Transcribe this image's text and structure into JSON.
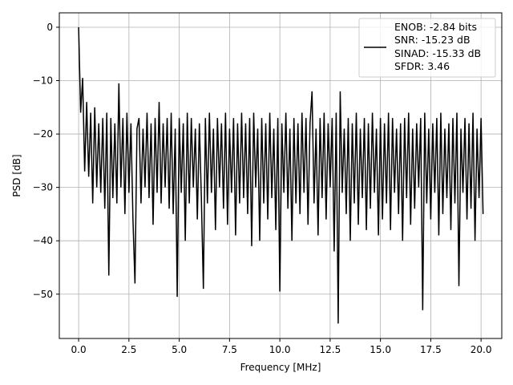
{
  "chart_data": {
    "type": "line",
    "title": "",
    "xlabel": "Frequency [MHz]",
    "ylabel": "PSD [dB]",
    "xlim": [
      -0.96,
      21.03
    ],
    "ylim": [
      -58.3,
      2.7
    ],
    "xticks": [
      0.0,
      2.5,
      5.0,
      7.5,
      10.0,
      12.5,
      15.0,
      17.5,
      20.0
    ],
    "xtick_labels": [
      "0.0",
      "2.5",
      "5.0",
      "7.5",
      "10.0",
      "12.5",
      "15.0",
      "17.5",
      "20.0"
    ],
    "yticks": [
      0,
      -10,
      -20,
      -30,
      -40,
      -50
    ],
    "ytick_labels": [
      "0",
      "−10",
      "−20",
      "−30",
      "−40",
      "−50"
    ],
    "grid": true,
    "line_color": "#000000",
    "grid_color": "#b0b0b0",
    "legend_placement": "upper-right",
    "legend_lines": [
      "ENOB: -2.84 bits",
      "SNR: -15.23 dB",
      "SINAD: -15.33 dB",
      "SFDR: 3.46"
    ],
    "x_start": 0.0,
    "x_step": 0.1,
    "values": [
      0,
      -16,
      -9.5,
      -27,
      -14,
      -28,
      -16,
      -33,
      -15,
      -30,
      -18,
      -31,
      -17,
      -34,
      -16,
      -46.5,
      -17,
      -32,
      -18,
      -33,
      -10.5,
      -30,
      -17,
      -35,
      -16,
      -31,
      -18,
      -36,
      -48,
      -19,
      -17,
      -33,
      -19,
      -30,
      -16,
      -32,
      -18,
      -37,
      -17,
      -31,
      -14,
      -33,
      -18,
      -30,
      -17,
      -34,
      -16,
      -35,
      -19,
      -50.5,
      -17,
      -31,
      -18,
      -40,
      -16,
      -33,
      -17,
      -30,
      -19,
      -36,
      -18,
      -32,
      -49,
      -17,
      -33,
      -16,
      -31,
      -19,
      -38,
      -17,
      -30,
      -18,
      -34,
      -16,
      -37,
      -19,
      -31,
      -17,
      -39,
      -18,
      -33,
      -16,
      -32,
      -18,
      -35,
      -17,
      -41,
      -16,
      -30,
      -19,
      -40,
      -17,
      -33,
      -18,
      -36,
      -16,
      -32,
      -19,
      -38,
      -17,
      -49.5,
      -18,
      -31,
      -16,
      -34,
      -19,
      -40,
      -17,
      -33,
      -18,
      -35,
      -16,
      -31,
      -17,
      -37,
      -18,
      -12,
      -33,
      -19,
      -39,
      -17,
      -32,
      -16,
      -36,
      -18,
      -30,
      -17,
      -42,
      -16,
      -55.5,
      -12,
      -31,
      -19,
      -35,
      -17,
      -40,
      -18,
      -33,
      -16,
      -37,
      -19,
      -32,
      -17,
      -38,
      -18,
      -34,
      -16,
      -31,
      -19,
      -39,
      -17,
      -36,
      -18,
      -33,
      -16,
      -38,
      -17,
      -31,
      -19,
      -35,
      -18,
      -40,
      -17,
      -32,
      -16,
      -37,
      -19,
      -34,
      -18,
      -30,
      -17,
      -53,
      -16,
      -33,
      -19,
      -36,
      -18,
      -31,
      -17,
      -39,
      -16,
      -35,
      -19,
      -32,
      -18,
      -38,
      -17,
      -33,
      -16,
      -48.5,
      -19,
      -31,
      -17,
      -36,
      -18,
      -34,
      -16,
      -40,
      -19,
      -32,
      -17,
      -35
    ]
  }
}
